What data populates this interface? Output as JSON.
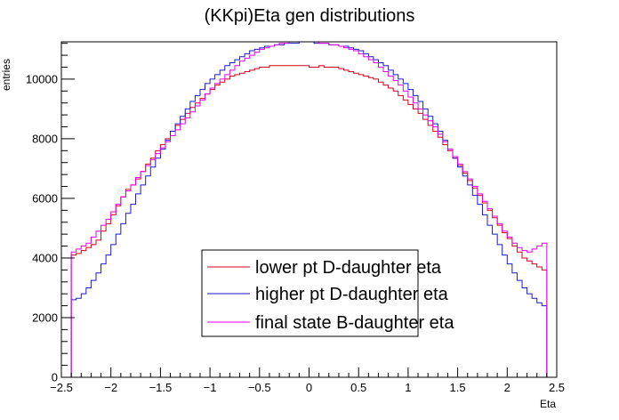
{
  "chart_data": {
    "type": "line",
    "title": "(KKpi)Eta gen distributions",
    "xlabel": "Eta",
    "ylabel": "entries",
    "xlim": [
      -2.5,
      2.5
    ],
    "ylim": [
      0,
      11250
    ],
    "xticks": [
      -2.5,
      -2,
      -1.5,
      -1,
      -0.5,
      0,
      0.5,
      1,
      1.5,
      2,
      2.5
    ],
    "xtick_labels": [
      "−2.5",
      "−2",
      "−1.5",
      "−1",
      "−0.5",
      "0",
      "0.5",
      "1",
      "1.5",
      "2",
      "2.5"
    ],
    "yticks": [
      0,
      2000,
      4000,
      6000,
      8000,
      10000
    ],
    "ytick_labels": [
      "0",
      "2000",
      "4000",
      "6000",
      "8000",
      "10000"
    ],
    "grid": false,
    "legend": {
      "position": "bottom-center"
    },
    "bin_range": [
      -2.4,
      2.4
    ],
    "series": [
      {
        "name": "lower pt D-daughter eta",
        "color": "#d0021b",
        "values": [
          4100,
          4150,
          4250,
          4350,
          4450,
          4600,
          4900,
          5150,
          5450,
          5750,
          6050,
          6300,
          6450,
          6650,
          6900,
          7150,
          7350,
          7600,
          7800,
          8000,
          8250,
          8450,
          8650,
          8850,
          9050,
          9200,
          9350,
          9500,
          9650,
          9800,
          9900,
          10000,
          10100,
          10150,
          10200,
          10250,
          10300,
          10350,
          10400,
          10400,
          10450,
          10450,
          10450,
          10450,
          10450,
          10450,
          10450,
          10450,
          10400,
          10400,
          10450,
          10400,
          10400,
          10400,
          10350,
          10300,
          10250,
          10200,
          10150,
          10100,
          10050,
          10000,
          9900,
          9800,
          9700,
          9600,
          9450,
          9300,
          9150,
          9000,
          8850,
          8650,
          8450,
          8250,
          8050,
          7800,
          7600,
          7350,
          7100,
          6850,
          6600,
          6350,
          6100,
          5850,
          5600,
          5350,
          5100,
          4850,
          4650,
          4400,
          4200,
          4000,
          3900,
          3800,
          3700,
          3600
        ]
      },
      {
        "name": "higher pt D-daughter eta",
        "color": "#1a1acc",
        "values": [
          2600,
          2650,
          2800,
          3000,
          3250,
          3500,
          3800,
          4100,
          4450,
          4800,
          5150,
          5500,
          5800,
          6150,
          6450,
          6750,
          7050,
          7350,
          7650,
          7950,
          8250,
          8500,
          8750,
          9000,
          9250,
          9450,
          9650,
          9850,
          10000,
          10150,
          10300,
          10450,
          10550,
          10650,
          10750,
          10850,
          10950,
          11000,
          11050,
          11100,
          11100,
          11150,
          11150,
          11200,
          11200,
          11200,
          11250,
          11250,
          11250,
          11200,
          11200,
          11200,
          11150,
          11150,
          11100,
          11100,
          11050,
          11000,
          10950,
          10850,
          10750,
          10650,
          10550,
          10450,
          10300,
          10150,
          10000,
          9850,
          9650,
          9450,
          9250,
          9000,
          8750,
          8500,
          8250,
          7950,
          7650,
          7350,
          7050,
          6750,
          6450,
          6100,
          5800,
          5450,
          5100,
          4800,
          4450,
          4100,
          3800,
          3500,
          3250,
          3000,
          2800,
          2650,
          2500,
          2400
        ]
      },
      {
        "name": "final state B-daughter eta",
        "color": "#e600e6",
        "values": [
          4200,
          4300,
          4400,
          4500,
          4700,
          4900,
          5100,
          5300,
          5550,
          5800,
          6050,
          6250,
          6450,
          6700,
          6900,
          7100,
          7300,
          7500,
          7700,
          7900,
          8100,
          8300,
          8500,
          8700,
          8900,
          9100,
          9300,
          9500,
          9700,
          9850,
          10000,
          10150,
          10300,
          10450,
          10600,
          10700,
          10800,
          10900,
          11000,
          11050,
          11100,
          11150,
          11200,
          11200,
          11250,
          11250,
          11250,
          11250,
          11250,
          11250,
          11200,
          11200,
          11150,
          11150,
          11100,
          11050,
          11000,
          10950,
          10850,
          10750,
          10650,
          10550,
          10400,
          10250,
          10100,
          9950,
          9800,
          9600,
          9400,
          9200,
          9000,
          8800,
          8600,
          8400,
          8150,
          7900,
          7650,
          7400,
          7150,
          6900,
          6650,
          6400,
          6150,
          5900,
          5650,
          5400,
          5150,
          4900,
          4700,
          4500,
          4350,
          4250,
          4200,
          4300,
          4400,
          4500
        ]
      }
    ]
  }
}
